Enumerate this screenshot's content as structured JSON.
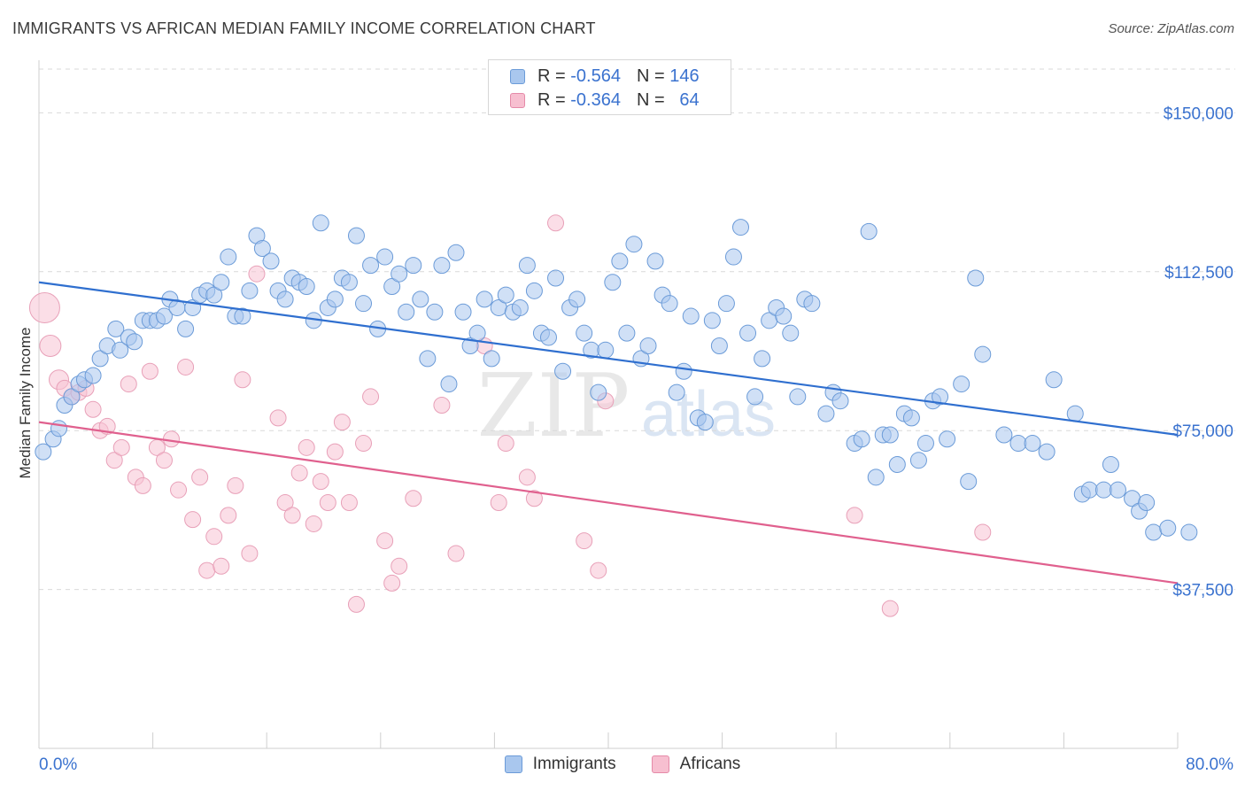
{
  "title": "IMMIGRANTS VS AFRICAN MEDIAN FAMILY INCOME CORRELATION CHART",
  "source": "Source: ZipAtlas.com",
  "watermark": {
    "zip": "ZIP",
    "atlas": "atlas"
  },
  "legend_top": {
    "rows": [
      {
        "r_label": "R =",
        "r_value": "-0.564",
        "n_label": "N =",
        "n_value": "146"
      },
      {
        "r_label": "R =",
        "r_value": "-0.364",
        "n_label": "N =",
        "n_value": "64"
      }
    ]
  },
  "legend_bottom": {
    "items": [
      "Immigrants",
      "Africans"
    ]
  },
  "colors": {
    "immigrants_fill": "#a9c7ee",
    "immigrants_stroke": "#6b9bd8",
    "immigrants_line": "#2f6fcf",
    "africans_fill": "#f7c3d3",
    "africans_stroke": "#e8a0b8",
    "africans_line": "#e0608e",
    "tick_label": "#3a72cf",
    "grid": "#d9d9d9"
  },
  "chart_data": {
    "type": "scatter",
    "title": "IMMIGRANTS VS AFRICAN MEDIAN FAMILY INCOME CORRELATION CHART",
    "xlabel": "",
    "ylabel": "Median Family Income",
    "xlim": [
      0,
      80
    ],
    "ylim": [
      0,
      162000
    ],
    "x_tick_labels": [
      "0.0%",
      "80.0%"
    ],
    "y_ticks": [
      37500,
      75000,
      112500,
      150000
    ],
    "y_tick_labels": [
      "$37,500",
      "$75,000",
      "$112,500",
      "$150,000"
    ],
    "grid": true,
    "legend_position": "top-center",
    "series": [
      {
        "name": "Immigrants",
        "r": -0.564,
        "n": 146,
        "trend": [
          [
            0,
            110000
          ],
          [
            80,
            74000
          ]
        ],
        "points": [
          [
            0.3,
            70000
          ],
          [
            1,
            73000
          ],
          [
            1.4,
            75500
          ],
          [
            1.8,
            81000
          ],
          [
            2.3,
            83000
          ],
          [
            2.8,
            86000
          ],
          [
            3.2,
            87000
          ],
          [
            3.8,
            88000
          ],
          [
            4.3,
            92000
          ],
          [
            4.8,
            95000
          ],
          [
            5.4,
            99000
          ],
          [
            5.7,
            94000
          ],
          [
            6.3,
            97000
          ],
          [
            6.7,
            96000
          ],
          [
            7.3,
            101000
          ],
          [
            7.8,
            101000
          ],
          [
            8.3,
            101000
          ],
          [
            8.8,
            102000
          ],
          [
            9.2,
            106000
          ],
          [
            9.7,
            104000
          ],
          [
            10.3,
            99000
          ],
          [
            10.8,
            104000
          ],
          [
            11.3,
            107000
          ],
          [
            11.8,
            108000
          ],
          [
            12.3,
            107000
          ],
          [
            12.8,
            110000
          ],
          [
            13.3,
            116000
          ],
          [
            13.8,
            102000
          ],
          [
            14.3,
            102000
          ],
          [
            14.8,
            108000
          ],
          [
            15.3,
            121000
          ],
          [
            15.7,
            118000
          ],
          [
            16.3,
            115000
          ],
          [
            16.8,
            108000
          ],
          [
            17.3,
            106000
          ],
          [
            17.8,
            111000
          ],
          [
            18.3,
            110000
          ],
          [
            18.8,
            109000
          ],
          [
            19.3,
            101000
          ],
          [
            19.8,
            124000
          ],
          [
            20.3,
            104000
          ],
          [
            20.8,
            106000
          ],
          [
            21.3,
            111000
          ],
          [
            21.8,
            110000
          ],
          [
            22.3,
            121000
          ],
          [
            22.8,
            105000
          ],
          [
            23.3,
            114000
          ],
          [
            23.8,
            99000
          ],
          [
            24.3,
            116000
          ],
          [
            24.8,
            109000
          ],
          [
            25.3,
            112000
          ],
          [
            25.8,
            103000
          ],
          [
            26.3,
            114000
          ],
          [
            26.8,
            106000
          ],
          [
            27.3,
            92000
          ],
          [
            27.8,
            103000
          ],
          [
            28.3,
            114000
          ],
          [
            28.8,
            86000
          ],
          [
            29.3,
            117000
          ],
          [
            29.8,
            103000
          ],
          [
            30.3,
            95000
          ],
          [
            30.8,
            98000
          ],
          [
            31.3,
            106000
          ],
          [
            31.8,
            92000
          ],
          [
            32.3,
            104000
          ],
          [
            32.8,
            107000
          ],
          [
            33.3,
            103000
          ],
          [
            33.8,
            104000
          ],
          [
            34.3,
            114000
          ],
          [
            34.8,
            108000
          ],
          [
            35.3,
            98000
          ],
          [
            35.8,
            97000
          ],
          [
            36.3,
            111000
          ],
          [
            36.8,
            89000
          ],
          [
            37.3,
            104000
          ],
          [
            37.8,
            106000
          ],
          [
            38.3,
            98000
          ],
          [
            38.8,
            94000
          ],
          [
            39.3,
            84000
          ],
          [
            39.8,
            94000
          ],
          [
            40.3,
            110000
          ],
          [
            40.8,
            115000
          ],
          [
            41.3,
            98000
          ],
          [
            41.8,
            119000
          ],
          [
            42.3,
            92000
          ],
          [
            42.8,
            95000
          ],
          [
            43.3,
            115000
          ],
          [
            43.8,
            107000
          ],
          [
            44.3,
            105000
          ],
          [
            44.8,
            84000
          ],
          [
            45.3,
            89000
          ],
          [
            45.8,
            102000
          ],
          [
            46.3,
            78000
          ],
          [
            46.8,
            77000
          ],
          [
            47.3,
            101000
          ],
          [
            47.8,
            95000
          ],
          [
            48.3,
            105000
          ],
          [
            48.8,
            116000
          ],
          [
            49.3,
            123000
          ],
          [
            49.8,
            98000
          ],
          [
            50.3,
            83000
          ],
          [
            50.8,
            92000
          ],
          [
            51.3,
            101000
          ],
          [
            51.8,
            104000
          ],
          [
            52.3,
            102000
          ],
          [
            52.8,
            98000
          ],
          [
            53.3,
            83000
          ],
          [
            53.8,
            106000
          ],
          [
            54.3,
            105000
          ],
          [
            55.3,
            79000
          ],
          [
            55.8,
            84000
          ],
          [
            56.3,
            82000
          ],
          [
            57.3,
            72000
          ],
          [
            57.8,
            73000
          ],
          [
            58.3,
            122000
          ],
          [
            58.8,
            64000
          ],
          [
            59.3,
            74000
          ],
          [
            59.8,
            74000
          ],
          [
            60.3,
            67000
          ],
          [
            60.8,
            79000
          ],
          [
            61.3,
            78000
          ],
          [
            61.8,
            68000
          ],
          [
            62.3,
            72000
          ],
          [
            62.8,
            82000
          ],
          [
            63.3,
            83000
          ],
          [
            63.8,
            73000
          ],
          [
            64.8,
            86000
          ],
          [
            65.3,
            63000
          ],
          [
            65.8,
            111000
          ],
          [
            66.3,
            93000
          ],
          [
            67.8,
            74000
          ],
          [
            68.8,
            72000
          ],
          [
            69.8,
            72000
          ],
          [
            70.8,
            70000
          ],
          [
            71.3,
            87000
          ],
          [
            72.8,
            79000
          ],
          [
            73.3,
            60000
          ],
          [
            73.8,
            61000
          ],
          [
            74.8,
            61000
          ],
          [
            75.3,
            67000
          ],
          [
            75.8,
            61000
          ],
          [
            76.8,
            59000
          ],
          [
            77.3,
            56000
          ],
          [
            77.8,
            58000
          ],
          [
            78.3,
            51000
          ],
          [
            79.3,
            52000
          ],
          [
            80.8,
            51000
          ]
        ]
      },
      {
        "name": "Africans",
        "r": -0.364,
        "n": 64,
        "trend": [
          [
            0,
            77000
          ],
          [
            80,
            39000
          ]
        ],
        "points": [
          [
            0.4,
            104000
          ],
          [
            0.8,
            95000
          ],
          [
            1.4,
            87000
          ],
          [
            1.8,
            85000
          ],
          [
            2.3,
            83000
          ],
          [
            2.8,
            84000
          ],
          [
            3.3,
            85000
          ],
          [
            3.8,
            80000
          ],
          [
            4.3,
            75000
          ],
          [
            4.8,
            76000
          ],
          [
            5.3,
            68000
          ],
          [
            5.8,
            71000
          ],
          [
            6.3,
            86000
          ],
          [
            6.8,
            64000
          ],
          [
            7.3,
            62000
          ],
          [
            7.8,
            89000
          ],
          [
            8.3,
            71000
          ],
          [
            8.8,
            68000
          ],
          [
            9.3,
            73000
          ],
          [
            9.8,
            61000
          ],
          [
            10.3,
            90000
          ],
          [
            10.8,
            54000
          ],
          [
            11.3,
            64000
          ],
          [
            11.8,
            42000
          ],
          [
            12.3,
            50000
          ],
          [
            12.8,
            43000
          ],
          [
            13.3,
            55000
          ],
          [
            13.8,
            62000
          ],
          [
            14.3,
            87000
          ],
          [
            14.8,
            46000
          ],
          [
            15.3,
            112000
          ],
          [
            16.8,
            78000
          ],
          [
            17.3,
            58000
          ],
          [
            17.8,
            55000
          ],
          [
            18.3,
            65000
          ],
          [
            18.8,
            71000
          ],
          [
            19.3,
            53000
          ],
          [
            19.8,
            63000
          ],
          [
            20.3,
            58000
          ],
          [
            20.8,
            70000
          ],
          [
            21.3,
            77000
          ],
          [
            21.8,
            58000
          ],
          [
            22.3,
            34000
          ],
          [
            22.8,
            72000
          ],
          [
            23.3,
            83000
          ],
          [
            24.3,
            49000
          ],
          [
            24.8,
            39000
          ],
          [
            25.3,
            43000
          ],
          [
            26.3,
            59000
          ],
          [
            28.3,
            81000
          ],
          [
            29.3,
            46000
          ],
          [
            31.3,
            95000
          ],
          [
            32.3,
            58000
          ],
          [
            32.8,
            72000
          ],
          [
            34.3,
            64000
          ],
          [
            34.8,
            59000
          ],
          [
            36.3,
            124000
          ],
          [
            38.3,
            49000
          ],
          [
            39.3,
            42000
          ],
          [
            39.8,
            82000
          ],
          [
            57.3,
            55000
          ],
          [
            59.8,
            33000
          ],
          [
            66.3,
            51000
          ]
        ]
      }
    ]
  }
}
